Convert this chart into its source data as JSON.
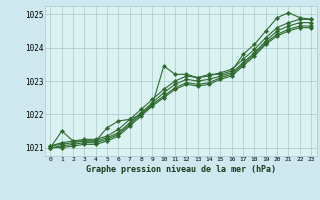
{
  "background_color": "#cfe8f0",
  "plot_bg_color": "#daf2f2",
  "grid_color": "#aac8c8",
  "line_color": "#2d6a2d",
  "title": "Graphe pression niveau de la mer (hPa)",
  "xlim": [
    -0.5,
    23.5
  ],
  "ylim": [
    1020.75,
    1025.25
  ],
  "xticks": [
    0,
    1,
    2,
    3,
    4,
    5,
    6,
    7,
    8,
    9,
    10,
    11,
    12,
    13,
    14,
    15,
    16,
    17,
    18,
    19,
    20,
    21,
    22,
    23
  ],
  "yticks": [
    1021,
    1022,
    1023,
    1024,
    1025
  ],
  "series": [
    [
      1021.0,
      1021.5,
      1021.2,
      1021.2,
      1021.2,
      1021.6,
      1021.8,
      1021.85,
      1022.0,
      1022.3,
      1023.45,
      1023.2,
      1023.2,
      1023.1,
      1023.2,
      1023.2,
      1023.3,
      1023.8,
      1024.1,
      1024.5,
      1024.9,
      1025.05,
      1024.9,
      1024.85
    ],
    [
      1021.05,
      1021.15,
      1021.2,
      1021.25,
      1021.25,
      1021.35,
      1021.55,
      1021.85,
      1022.15,
      1022.45,
      1022.75,
      1023.0,
      1023.15,
      1023.1,
      1023.15,
      1023.25,
      1023.35,
      1023.65,
      1023.95,
      1024.3,
      1024.6,
      1024.75,
      1024.85,
      1024.85
    ],
    [
      1021.05,
      1021.1,
      1021.15,
      1021.2,
      1021.2,
      1021.3,
      1021.45,
      1021.75,
      1022.05,
      1022.35,
      1022.65,
      1022.9,
      1023.05,
      1023.0,
      1023.05,
      1023.15,
      1023.25,
      1023.55,
      1023.85,
      1024.2,
      1024.5,
      1024.65,
      1024.75,
      1024.75
    ],
    [
      1021.0,
      1021.05,
      1021.1,
      1021.15,
      1021.15,
      1021.25,
      1021.4,
      1021.7,
      1022.0,
      1022.3,
      1022.55,
      1022.8,
      1022.95,
      1022.9,
      1022.95,
      1023.1,
      1023.2,
      1023.5,
      1023.8,
      1024.15,
      1024.4,
      1024.55,
      1024.65,
      1024.65
    ],
    [
      1021.0,
      1021.0,
      1021.05,
      1021.1,
      1021.1,
      1021.2,
      1021.35,
      1021.65,
      1021.95,
      1022.25,
      1022.5,
      1022.75,
      1022.9,
      1022.85,
      1022.9,
      1023.05,
      1023.15,
      1023.45,
      1023.75,
      1024.1,
      1024.35,
      1024.5,
      1024.6,
      1024.6
    ]
  ],
  "marker": "D",
  "markersize": 2.2,
  "linewidth": 0.8
}
